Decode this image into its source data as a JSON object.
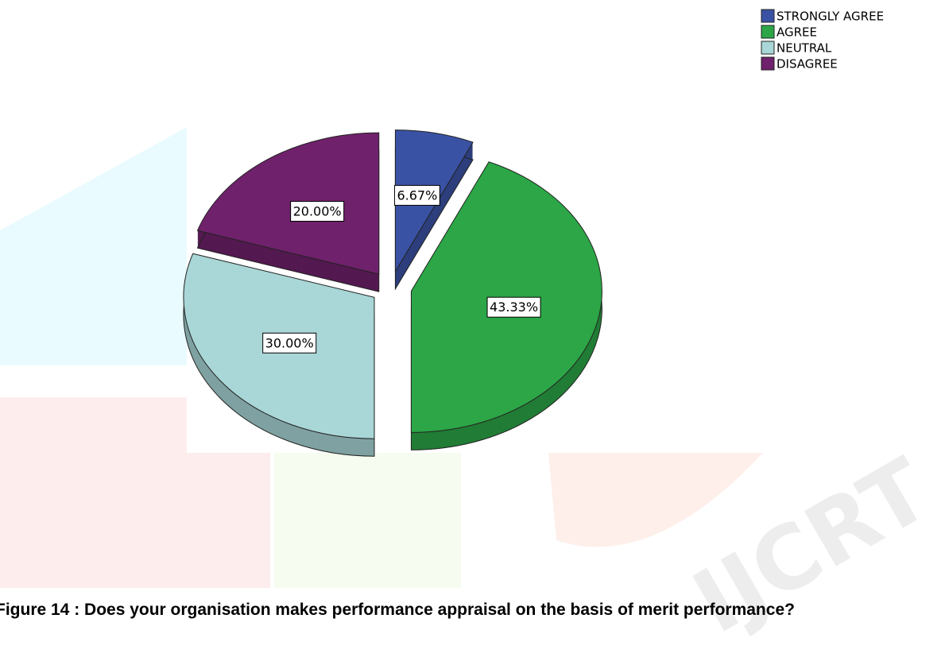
{
  "chart_data": {
    "type": "pie",
    "categories": [
      "STRONGLY AGREE",
      "AGREE",
      "NEUTRAL",
      "DISAGREE"
    ],
    "values": [
      6.67,
      43.33,
      30.0,
      20.0
    ],
    "value_labels": [
      "6.67%",
      "43.33%",
      "30.00%",
      "20.00%"
    ],
    "colors": [
      "#3a52a4",
      "#2ca646",
      "#a9d6d6",
      "#6f216b"
    ],
    "legend": "top-right",
    "caption": "Figure 14 : Does your organisation makes performance appraisal on the basis of merit performance?"
  }
}
